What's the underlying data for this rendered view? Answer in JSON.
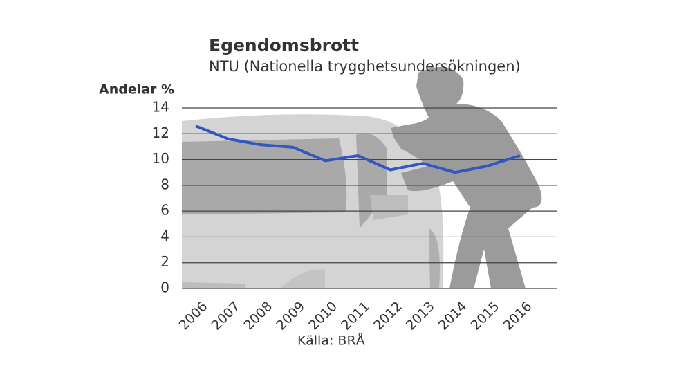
{
  "chart_data": {
    "type": "line",
    "title": "Egendomsbrott",
    "subtitle": "NTU (Nationella trygghetsundersökningen)",
    "y_label": "Andelar %",
    "source": "Källa: BRÅ",
    "categories": [
      "2006",
      "2007",
      "2008",
      "2009",
      "2010",
      "2011",
      "2012",
      "2013",
      "2014",
      "2015",
      "2016"
    ],
    "values": [
      12.6,
      11.6,
      11.15,
      10.95,
      9.9,
      10.3,
      9.2,
      9.7,
      9.0,
      9.5,
      10.3
    ],
    "color": "#3356c0",
    "ylim": [
      0,
      14
    ],
    "yticks": [
      0,
      2,
      4,
      6,
      8,
      10,
      12,
      14
    ],
    "grid": true
  }
}
